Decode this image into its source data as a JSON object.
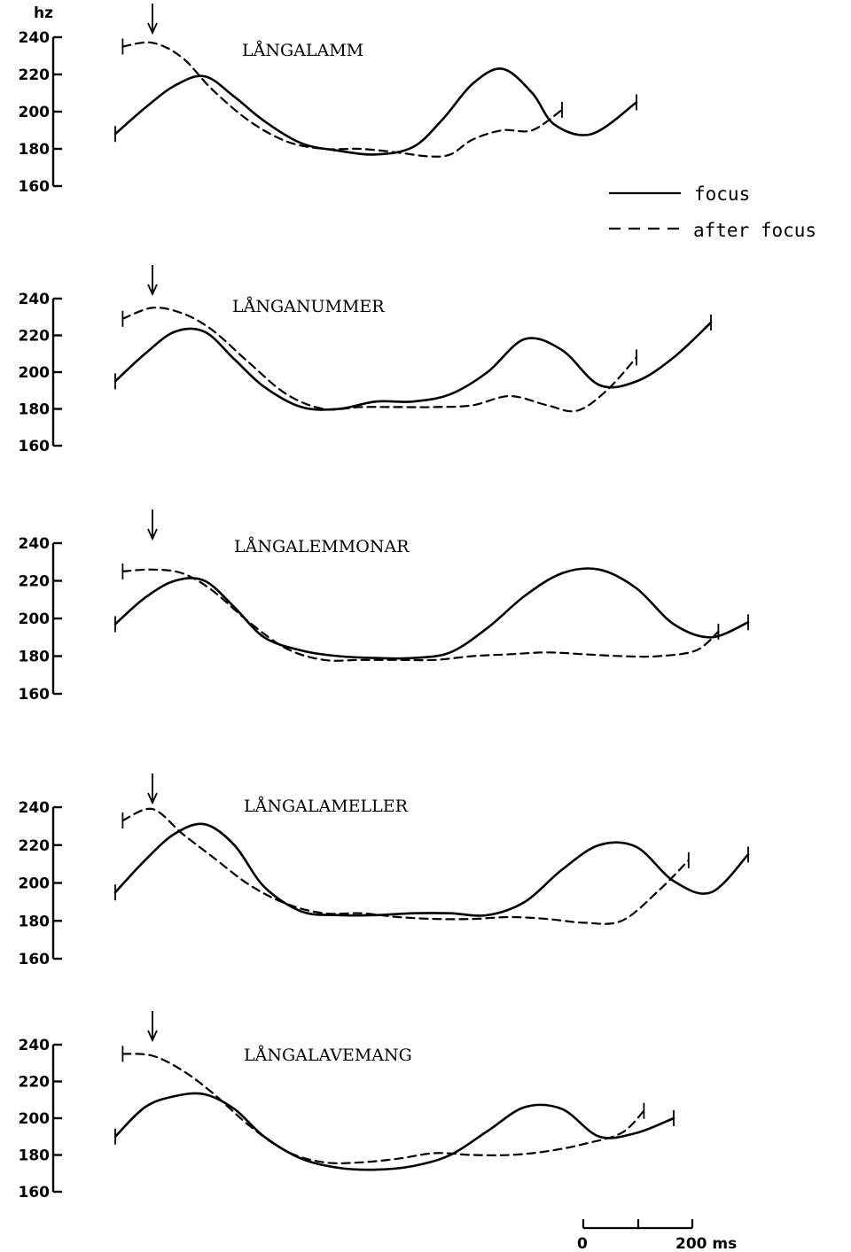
{
  "chart_data": {
    "type": "line",
    "y_unit": "hz",
    "legend": {
      "placement": "right",
      "entries": [
        {
          "label": "focus",
          "style": "solid"
        },
        {
          "label": "after focus",
          "style": "dashed"
        }
      ]
    },
    "time_scale": {
      "labels": [
        "0",
        "200 ms"
      ],
      "span_ms": 200
    },
    "panels": [
      {
        "word": "LÅNGALAMM",
        "y_ticks": [
          160,
          180,
          200,
          220,
          240
        ],
        "ylim": [
          160,
          240
        ],
        "xlim_ms": [
          0,
          850
        ],
        "series": [
          {
            "name": "focus",
            "x_ms": [
              0,
              40,
              80,
              120,
              160,
              200,
              250,
              300,
              350,
              400,
              440,
              480,
              520,
              560,
              590,
              640,
              700
            ],
            "y_hz": [
              188,
              202,
              214,
              219,
              208,
              195,
              183,
              179,
              177,
              181,
              196,
              215,
              223,
              210,
              193,
              188,
              205
            ]
          },
          {
            "name": "after focus",
            "x_ms": [
              10,
              50,
              90,
              130,
              180,
              230,
              280,
              330,
              380,
              420,
              450,
              480,
              520,
              560,
              600
            ],
            "y_hz": [
              235,
              237,
              229,
              212,
              195,
              184,
              180,
              180,
              178,
              176,
              177,
              185,
              190,
              190,
              201
            ]
          }
        ]
      },
      {
        "word": "LÅNGANUMMER",
        "y_ticks": [
          160,
          180,
          200,
          220,
          240
        ],
        "ylim": [
          160,
          240
        ],
        "xlim_ms": [
          0,
          850
        ],
        "series": [
          {
            "name": "focus",
            "x_ms": [
              0,
              40,
              80,
              120,
              160,
              200,
              250,
              300,
              350,
              400,
              450,
              500,
              550,
              600,
              650,
              700,
              750,
              800
            ],
            "y_hz": [
              195,
              210,
              222,
              222,
              207,
              192,
              181,
              180,
              184,
              184,
              188,
              200,
              218,
              212,
              193,
              195,
              208,
              227
            ]
          },
          {
            "name": "after focus",
            "x_ms": [
              10,
              50,
              90,
              130,
              180,
              230,
              280,
              330,
              380,
              430,
              480,
              530,
              580,
              620,
              660,
              700
            ],
            "y_hz": [
              229,
              235,
              232,
              223,
              205,
              188,
              180,
              181,
              181,
              181,
              182,
              187,
              182,
              179,
              190,
              208
            ]
          }
        ]
      },
      {
        "word": "LÅNGALEMMONAR",
        "y_ticks": [
          160,
          180,
          200,
          220,
          240
        ],
        "ylim": [
          160,
          240
        ],
        "xlim_ms": [
          0,
          850
        ],
        "series": [
          {
            "name": "focus",
            "x_ms": [
              0,
              40,
              80,
              120,
              160,
              200,
              250,
              300,
              350,
              400,
              450,
              500,
              550,
              600,
              650,
              700,
              750,
              800,
              850
            ],
            "y_hz": [
              197,
              211,
              220,
              220,
              206,
              190,
              183,
              180,
              179,
              179,
              182,
              195,
              212,
              224,
              226,
              216,
              197,
              190,
              198
            ]
          },
          {
            "name": "after focus",
            "x_ms": [
              10,
              50,
              90,
              130,
              180,
              230,
              280,
              330,
              380,
              430,
              480,
              530,
              580,
              630,
              680,
              730,
              780,
              810
            ],
            "y_hz": [
              225,
              226,
              224,
              215,
              198,
              184,
              178,
              178,
              178,
              178,
              180,
              181,
              182,
              181,
              180,
              180,
              183,
              193
            ]
          }
        ]
      },
      {
        "word": "LÅNGALAMELLER",
        "y_ticks": [
          160,
          180,
          200,
          220,
          240
        ],
        "ylim": [
          160,
          240
        ],
        "xlim_ms": [
          0,
          850
        ],
        "series": [
          {
            "name": "focus",
            "x_ms": [
              0,
              40,
              80,
              120,
              160,
              200,
              250,
              300,
              350,
              400,
              450,
              500,
              550,
              600,
              650,
              700,
              750,
              800,
              850
            ],
            "y_hz": [
              195,
              212,
              226,
              231,
              220,
              198,
              185,
              183,
              183,
              184,
              184,
              183,
              190,
              207,
              220,
              219,
              201,
              195,
              215
            ]
          },
          {
            "name": "after focus",
            "x_ms": [
              10,
              50,
              90,
              130,
              180,
              230,
              280,
              330,
              380,
              430,
              480,
              530,
              580,
              630,
              680,
              730,
              770
            ],
            "y_hz": [
              233,
              239,
              226,
              214,
              199,
              189,
              184,
              184,
              182,
              181,
              181,
              182,
              181,
              179,
              180,
              196,
              212
            ]
          }
        ]
      },
      {
        "word": "LÅNGALAVEMANG",
        "y_ticks": [
          160,
          180,
          200,
          220,
          240
        ],
        "ylim": [
          160,
          240
        ],
        "xlim_ms": [
          0,
          850
        ],
        "series": [
          {
            "name": "focus",
            "x_ms": [
              0,
              40,
              80,
              120,
              160,
              200,
              250,
              300,
              350,
              400,
              450,
              500,
              550,
              600,
              650,
              700,
              750
            ],
            "y_hz": [
              190,
              206,
              212,
              213,
              205,
              190,
              178,
              173,
              172,
              174,
              180,
              193,
              206,
              205,
              190,
              192,
              200
            ]
          },
          {
            "name": "after focus",
            "x_ms": [
              10,
              50,
              90,
              130,
              180,
              230,
              280,
              330,
              380,
              430,
              480,
              530,
              580,
              630,
              680,
              710
            ],
            "y_hz": [
              235,
              234,
              226,
              214,
              196,
              182,
              176,
              176,
              178,
              181,
              180,
              180,
              182,
              186,
              192,
              204
            ]
          }
        ]
      }
    ]
  }
}
